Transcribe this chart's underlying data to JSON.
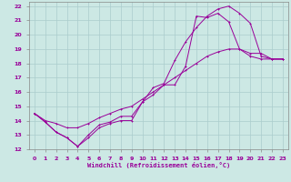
{
  "xlabel": "Windchill (Refroidissement éolien,°C)",
  "bg_color": "#cce8e4",
  "grid_color": "#aacccc",
  "line_color": "#990099",
  "xlim": [
    -0.5,
    23.5
  ],
  "ylim": [
    12,
    22.3
  ],
  "xticks": [
    0,
    1,
    2,
    3,
    4,
    5,
    6,
    7,
    8,
    9,
    10,
    11,
    12,
    13,
    14,
    15,
    16,
    17,
    18,
    19,
    20,
    21,
    22,
    23
  ],
  "yticks": [
    12,
    13,
    14,
    15,
    16,
    17,
    18,
    19,
    20,
    21,
    22
  ],
  "line1_x": [
    0,
    1,
    2,
    3,
    4,
    5,
    6,
    7,
    8,
    9,
    10,
    11,
    12,
    13,
    14,
    15,
    16,
    17,
    18,
    19,
    20,
    21,
    22,
    23
  ],
  "line1_y": [
    14.5,
    13.9,
    13.2,
    12.8,
    12.2,
    12.8,
    13.5,
    13.8,
    14.0,
    14.0,
    15.3,
    16.3,
    16.6,
    18.2,
    19.5,
    20.5,
    21.3,
    21.8,
    22.0,
    21.5,
    20.8,
    18.5,
    18.3,
    18.3
  ],
  "line2_x": [
    0,
    1,
    2,
    3,
    4,
    5,
    6,
    7,
    8,
    9,
    10,
    11,
    12,
    13,
    14,
    15,
    16,
    17,
    18,
    19,
    20,
    21,
    22,
    23
  ],
  "line2_y": [
    14.5,
    13.9,
    13.2,
    12.8,
    12.2,
    13.0,
    13.7,
    13.9,
    14.3,
    14.3,
    15.3,
    15.8,
    16.5,
    16.5,
    17.8,
    21.3,
    21.2,
    21.5,
    20.9,
    19.0,
    18.7,
    18.7,
    18.3,
    18.3
  ],
  "line3_x": [
    0,
    1,
    2,
    3,
    4,
    5,
    6,
    7,
    8,
    9,
    10,
    11,
    12,
    13,
    14,
    15,
    16,
    17,
    18,
    19,
    20,
    21,
    22,
    23
  ],
  "line3_y": [
    14.5,
    14.0,
    13.8,
    13.5,
    13.5,
    13.8,
    14.2,
    14.5,
    14.8,
    15.0,
    15.5,
    16.0,
    16.5,
    17.0,
    17.5,
    18.0,
    18.5,
    18.8,
    19.0,
    19.0,
    18.5,
    18.3,
    18.3,
    18.3
  ]
}
